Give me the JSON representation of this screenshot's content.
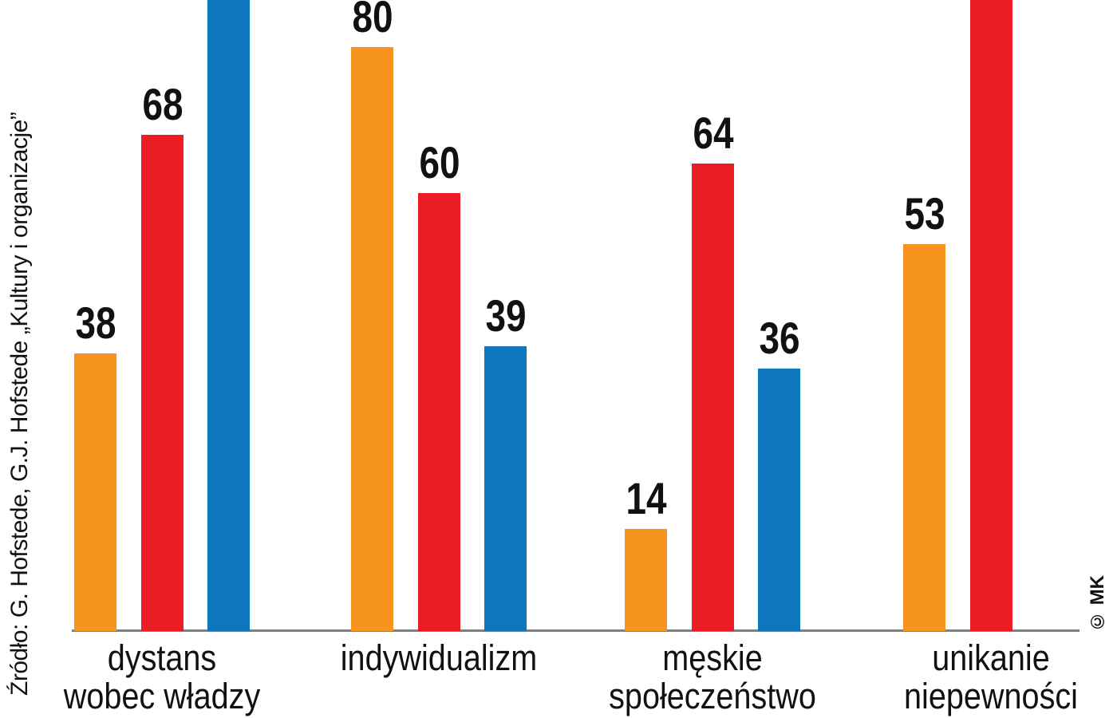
{
  "chart_data": {
    "type": "bar",
    "title": "",
    "categories": [
      {
        "lines": [
          "dystans",
          "wobec władzy"
        ]
      },
      {
        "lines": [
          "indywidualizm"
        ]
      },
      {
        "lines": [
          "męskie",
          "społeczeństwo"
        ]
      },
      {
        "lines": [
          "unikanie",
          "niepewności"
        ]
      }
    ],
    "series": [
      {
        "name": "orange",
        "color": "#F7941D",
        "values": [
          38,
          80,
          14,
          53
        ],
        "value_labels": [
          "38",
          "80",
          "14",
          "53"
        ],
        "clipped_top": [
          false,
          false,
          false,
          false
        ]
      },
      {
        "name": "red",
        "color": "#EC1C24",
        "values": [
          68,
          60,
          64,
          null
        ],
        "value_labels": [
          "68",
          "60",
          "64",
          ""
        ],
        "clipped_top": [
          false,
          false,
          false,
          true
        ]
      },
      {
        "name": "blue",
        "color": "#0D76BD",
        "values": [
          null,
          39,
          36,
          null
        ],
        "value_labels": [
          "",
          "39",
          "36",
          ""
        ],
        "clipped_top": [
          true,
          false,
          false,
          false
        ]
      }
    ],
    "legend": {
      "visible": false
    },
    "grid": false,
    "value_axis_visible": false
  },
  "source_note": "Źródło: G. Hofstede, G.J. Hofstede „Kultury i organizacje”",
  "copyright": "© MK",
  "colors": {
    "background": "#FFFFFF",
    "text": "#111111",
    "axis_line": "#7D7F82",
    "bar_orange": "#F7941D",
    "bar_red": "#EC1C24",
    "bar_blue": "#0D76BD"
  }
}
